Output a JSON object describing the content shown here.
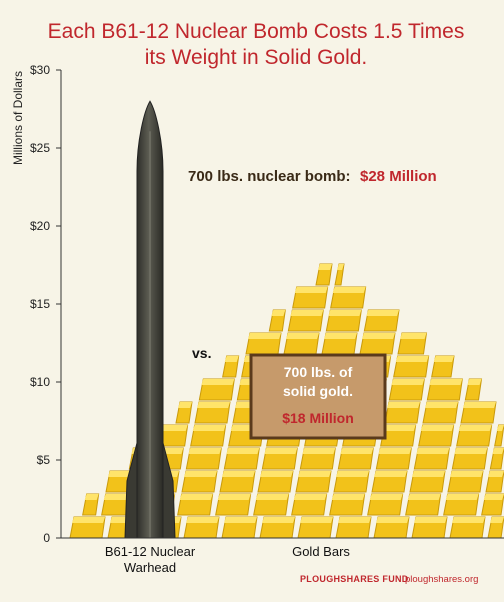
{
  "chart_data": {
    "type": "bar",
    "title_line1": "Each B61-12 Nuclear Bomb Costs 1.5 Times",
    "title_line2": "its Weight in Solid Gold.",
    "ylabel": "Millions of Dollars",
    "ylim": [
      0,
      30
    ],
    "yticks": [
      {
        "value": 0,
        "label": "0"
      },
      {
        "value": 5,
        "label": "$5"
      },
      {
        "value": 10,
        "label": "$10"
      },
      {
        "value": 15,
        "label": "$15"
      },
      {
        "value": 20,
        "label": "$20"
      },
      {
        "value": 25,
        "label": "$25"
      },
      {
        "value": 30,
        "label": "$30"
      }
    ],
    "categories": [
      {
        "line1": "B61-12 Nuclear",
        "line2": "Warhead"
      },
      {
        "line1": "Gold Bars",
        "line2": ""
      }
    ],
    "values": [
      28,
      18
    ],
    "annotations": {
      "bomb_label": "700 lbs. nuclear bomb:",
      "bomb_value": "$28 Million",
      "vs": "vs.",
      "gold_line1": "700 lbs. of",
      "gold_line2": "solid gold.",
      "gold_value": "$18 Million"
    },
    "colors": {
      "title": "#c0272d",
      "bomb": "#4a4a42",
      "gold": "#f2c21a",
      "gold_dark": "#c99a0c",
      "gold_light": "#ffe46a",
      "label_box": "#c69a6b",
      "label_box_border": "#5a3a1c",
      "background": "#f7f4e7"
    }
  },
  "footer": {
    "brand": "PLOUGHSHARES FUND",
    "url": "ploughshares.org"
  }
}
